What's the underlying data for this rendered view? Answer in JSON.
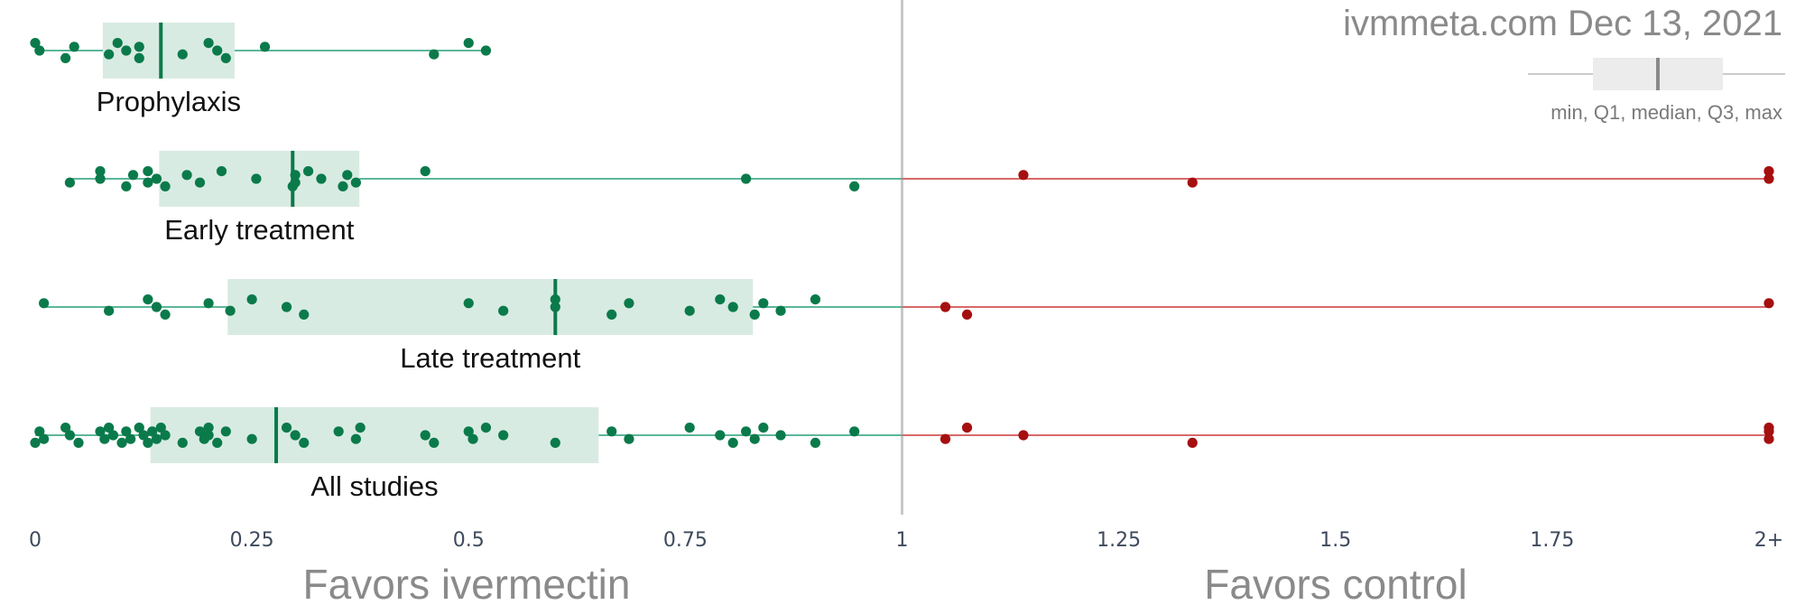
{
  "watermark": "ivmmeta.com Dec 13, 2021",
  "legend": {
    "caption": "min, Q1, median, Q3, max"
  },
  "colors": {
    "favor": "#0b7a4b",
    "favor_line": "#5bb79a",
    "box": "#d8ebe2",
    "control": "#a50f0f",
    "control_line": "#d96a6a",
    "grid": "#c8c8c8"
  },
  "chart_data": {
    "type": "scatter",
    "xlabel_left": "Favors ivermectin",
    "xlabel_right": "Favors control",
    "xlim": [
      0,
      2
    ],
    "xticks": [
      {
        "value": 0,
        "label": "0"
      },
      {
        "value": 0.25,
        "label": "0.25"
      },
      {
        "value": 0.5,
        "label": "0.5"
      },
      {
        "value": 0.75,
        "label": "0.75"
      },
      {
        "value": 1,
        "label": "1"
      },
      {
        "value": 1.25,
        "label": "1.25"
      },
      {
        "value": 1.5,
        "label": "1.5"
      },
      {
        "value": 1.75,
        "label": "1.75"
      },
      {
        "value": 2,
        "label": "2+"
      }
    ],
    "reference_line": 1,
    "groups": [
      {
        "name": "Prophylaxis",
        "min": 0.0,
        "q1": 0.078,
        "median": 0.145,
        "q3": 0.23,
        "max": 0.52,
        "values": [
          0.0,
          0.005,
          0.035,
          0.045,
          0.085,
          0.095,
          0.105,
          0.12,
          0.12,
          0.17,
          0.2,
          0.21,
          0.22,
          0.265,
          0.46,
          0.5,
          0.52
        ]
      },
      {
        "name": "Early treatment",
        "min": 0.04,
        "q1": 0.143,
        "median": 0.297,
        "q3": 0.374,
        "max": 2.0,
        "values": [
          0.04,
          0.075,
          0.075,
          0.105,
          0.113,
          0.13,
          0.13,
          0.14,
          0.15,
          0.175,
          0.19,
          0.215,
          0.255,
          0.297,
          0.3,
          0.3,
          0.315,
          0.33,
          0.355,
          0.36,
          0.37,
          0.45,
          0.82,
          0.945,
          1.14,
          1.335,
          2.0,
          2.0
        ]
      },
      {
        "name": "Late treatment",
        "min": 0.01,
        "q1": 0.222,
        "median": 0.6,
        "q3": 0.828,
        "max": 2.0,
        "values": [
          0.01,
          0.085,
          0.13,
          0.14,
          0.15,
          0.2,
          0.225,
          0.25,
          0.29,
          0.31,
          0.5,
          0.54,
          0.6,
          0.6,
          0.665,
          0.685,
          0.755,
          0.79,
          0.805,
          0.83,
          0.84,
          0.86,
          0.9,
          1.05,
          1.075,
          2.0
        ]
      },
      {
        "name": "All studies",
        "min": 0.0,
        "q1": 0.133,
        "median": 0.278,
        "q3": 0.65,
        "max": 2.0,
        "values": [
          0.0,
          0.005,
          0.01,
          0.035,
          0.04,
          0.05,
          0.075,
          0.08,
          0.085,
          0.09,
          0.1,
          0.105,
          0.11,
          0.12,
          0.125,
          0.13,
          0.135,
          0.14,
          0.145,
          0.15,
          0.17,
          0.19,
          0.195,
          0.2,
          0.2,
          0.21,
          0.22,
          0.25,
          0.29,
          0.3,
          0.31,
          0.35,
          0.37,
          0.375,
          0.45,
          0.46,
          0.5,
          0.505,
          0.52,
          0.54,
          0.6,
          0.665,
          0.685,
          0.755,
          0.79,
          0.805,
          0.82,
          0.83,
          0.84,
          0.86,
          0.9,
          0.945,
          1.05,
          1.075,
          1.14,
          1.335,
          2.0,
          2.0,
          2.0
        ]
      }
    ]
  }
}
